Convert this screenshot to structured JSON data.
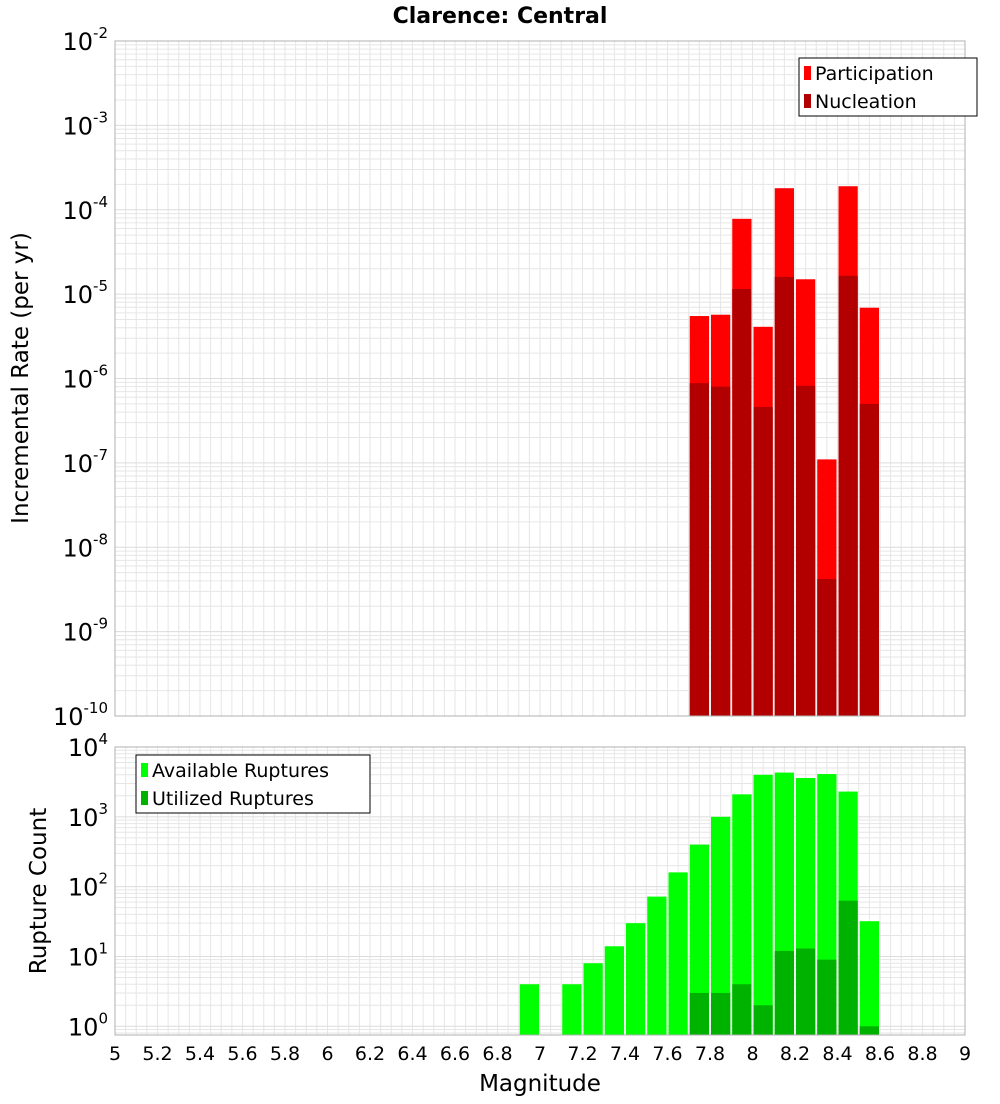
{
  "title": "Clarence: Central",
  "x_axis": {
    "label": "Magnitude",
    "ticks": [
      "5",
      "5.2",
      "5.4",
      "5.6",
      "5.8",
      "6",
      "6.2",
      "6.4",
      "6.6",
      "6.8",
      "7",
      "7.2",
      "7.4",
      "7.6",
      "7.8",
      "8",
      "8.2",
      "8.4",
      "8.6",
      "8.8",
      "9"
    ]
  },
  "colors": {
    "participation": "#ff0000",
    "nucleation": "#b20000",
    "available": "#00ff00",
    "utilized": "#00b200",
    "grid": "#e6e6e6",
    "frame": "#b0b0b0"
  },
  "chart_data": [
    {
      "type": "bar",
      "title": "Clarence: Central",
      "xlabel": "Magnitude",
      "ylabel": "Incremental Rate (per yr)",
      "yscale": "log",
      "xlim": [
        5,
        9
      ],
      "ylim": [
        1e-10,
        0.01
      ],
      "y_tick_exponents": [
        -10,
        -9,
        -8,
        -7,
        -6,
        -5,
        -4,
        -3,
        -2
      ],
      "bar_width": 0.1,
      "legend": "top-right",
      "grid": true,
      "x": [
        7.75,
        7.85,
        7.95,
        8.05,
        8.15,
        8.25,
        8.35,
        8.45,
        8.55
      ],
      "series": [
        {
          "name": "Participation",
          "values": [
            5.5e-06,
            5.7e-06,
            7.8e-05,
            4.1e-06,
            0.00018,
            1.5e-05,
            1.1e-07,
            0.00019,
            6.9e-06
          ]
        },
        {
          "name": "Nucleation",
          "values": [
            8.8e-07,
            8e-07,
            1.15e-05,
            4.6e-07,
            1.6e-05,
            8.2e-07,
            4.2e-09,
            1.65e-05,
            5e-07
          ]
        }
      ]
    },
    {
      "type": "bar",
      "xlabel": "Magnitude",
      "ylabel": "Rupture Count",
      "yscale": "log",
      "xlim": [
        5,
        9
      ],
      "ylim": [
        0.75,
        10000
      ],
      "y_tick_exponents": [
        0,
        1,
        2,
        3,
        4
      ],
      "bar_width": 0.1,
      "legend": "top-left",
      "grid": true,
      "x": [
        6.95,
        7.15,
        7.25,
        7.35,
        7.45,
        7.55,
        7.65,
        7.75,
        7.85,
        7.95,
        8.05,
        8.15,
        8.25,
        8.35,
        8.45,
        8.55
      ],
      "series": [
        {
          "name": "Available Ruptures",
          "values": [
            4,
            4,
            8,
            14,
            30,
            72,
            160,
            400,
            1000,
            2100,
            4000,
            4300,
            3600,
            4100,
            2300,
            32
          ]
        },
        {
          "name": "Utilized Ruptures",
          "values": [
            null,
            null,
            null,
            null,
            null,
            null,
            null,
            3,
            3,
            4,
            2,
            12,
            13,
            9,
            63,
            1
          ]
        }
      ]
    }
  ]
}
